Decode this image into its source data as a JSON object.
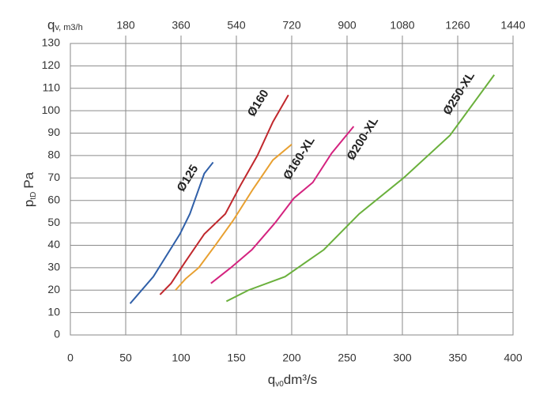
{
  "chart_data": {
    "type": "line",
    "xlabel": {
      "symbol": "q",
      "subscript": "v0",
      "unit": "dm³/s"
    },
    "ylabel": {
      "symbol": "p",
      "subscript": "tD",
      "unit": "Pa"
    },
    "x2label": {
      "symbol": "q",
      "subscript": "v, m3/h"
    },
    "xlim": [
      0,
      400
    ],
    "xticks": [
      0,
      50,
      100,
      150,
      200,
      250,
      300,
      350,
      400
    ],
    "x2lim": [
      0,
      1440
    ],
    "x2ticks": [
      180,
      360,
      540,
      720,
      900,
      1080,
      1260,
      1440
    ],
    "ylim": [
      0,
      130
    ],
    "yticks": [
      0,
      10,
      20,
      30,
      40,
      50,
      60,
      70,
      80,
      90,
      100,
      110,
      120,
      130
    ],
    "grid": true,
    "series": [
      {
        "name": "Ø125",
        "color": "#2f5fa8",
        "x": [
          54,
          75,
          99,
          108,
          121,
          129
        ],
        "values": [
          14,
          26,
          45,
          54,
          72,
          77
        ]
      },
      {
        "name": "Ø160",
        "color": "#c0282d",
        "x": [
          81,
          91,
          103,
          121,
          140,
          154,
          169,
          183,
          197
        ],
        "values": [
          18,
          23,
          32,
          45,
          54,
          67,
          80,
          95,
          107
        ]
      },
      {
        "name": "Ø160-XL",
        "color": "#e8a030",
        "x": [
          95,
          104,
          116,
          131,
          147,
          165,
          183,
          200
        ],
        "values": [
          20,
          25,
          30,
          40,
          51,
          65,
          78,
          85
        ]
      },
      {
        "name": "Ø200-XL",
        "color": "#d4237f",
        "x": [
          127,
          145,
          164,
          185,
          202,
          219,
          236,
          256
        ],
        "values": [
          23,
          30,
          38,
          50,
          61,
          68,
          81,
          93
        ]
      },
      {
        "name": "Ø250-XL",
        "color": "#6ab03c",
        "x": [
          141,
          161,
          194,
          229,
          261,
          301,
          343,
          383
        ],
        "values": [
          15,
          20,
          26,
          38,
          54,
          70,
          89,
          116
        ]
      }
    ]
  }
}
